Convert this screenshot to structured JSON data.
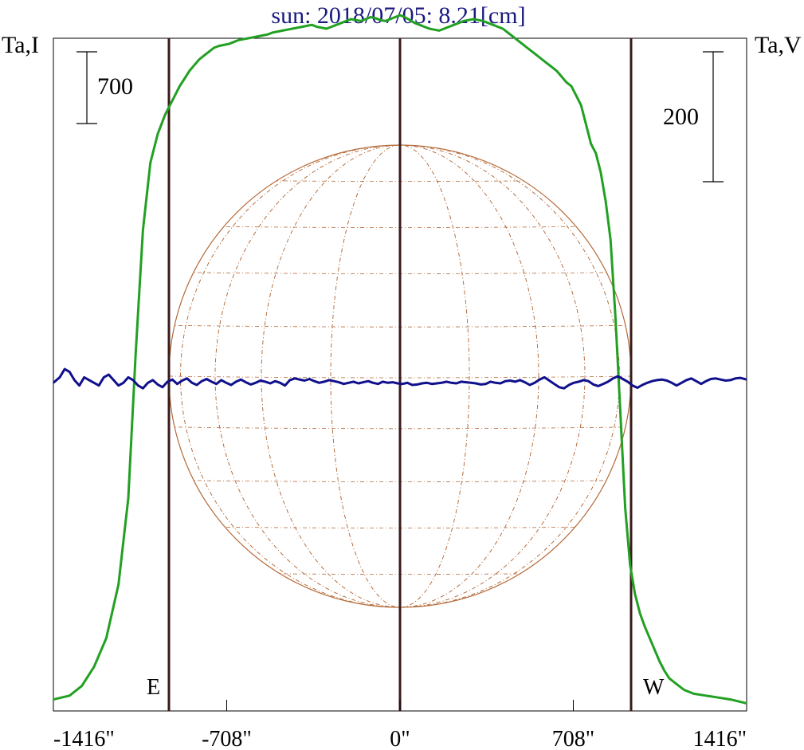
{
  "chart_data": {
    "type": "line",
    "title": "sun: 2018/07/05: 8.21[cm]",
    "ylabel_left": "Ta,I",
    "ylabel_right": "Ta,V",
    "xlim": [
      -1416,
      1416
    ],
    "x_ticks": [
      "-1416\"",
      "-708\"",
      "0\"",
      "708\"",
      "1416\""
    ],
    "x_tick_values": [
      -1416,
      -708,
      0,
      708,
      1416
    ],
    "scale_bar_left": "700",
    "scale_bar_right": "200",
    "limb_labels": {
      "east": "E",
      "west": "W"
    },
    "limb_positions": [
      -944,
      0,
      944
    ],
    "solar_radius_arcsec": 944,
    "series": [
      {
        "name": "I",
        "color": "#22a022",
        "ylim": [
          -60,
          3450
        ],
        "x": [
          -1416,
          -1350,
          -1300,
          -1250,
          -1200,
          -1150,
          -1110,
          -1080,
          -1050,
          -1020,
          -990,
          -960,
          -940,
          -920,
          -900,
          -880,
          -860,
          -840,
          -820,
          -800,
          -780,
          -760,
          -740,
          -720,
          -700,
          -680,
          -660,
          -640,
          -620,
          -600,
          -580,
          -560,
          -540,
          -520,
          -500,
          -480,
          -460,
          -440,
          -420,
          -400,
          -380,
          -360,
          -340,
          -320,
          -300,
          -280,
          -260,
          -240,
          -220,
          -200,
          -180,
          -160,
          -140,
          -120,
          -100,
          -80,
          -60,
          -40,
          -20,
          0,
          20,
          40,
          60,
          80,
          100,
          120,
          140,
          160,
          180,
          200,
          220,
          240,
          260,
          280,
          300,
          320,
          340,
          360,
          380,
          400,
          420,
          440,
          460,
          480,
          500,
          520,
          540,
          560,
          580,
          600,
          620,
          640,
          660,
          680,
          700,
          720,
          740,
          760,
          780,
          800,
          820,
          840,
          860,
          880,
          900,
          920,
          940,
          960,
          980,
          1000,
          1020,
          1040,
          1060,
          1080,
          1100,
          1130,
          1160,
          1200,
          1250,
          1300,
          1350,
          1416
        ],
        "y": [
          0,
          20,
          70,
          170,
          320,
          600,
          1050,
          1800,
          2450,
          2800,
          2950,
          3050,
          3100,
          3150,
          3200,
          3240,
          3280,
          3310,
          3340,
          3360,
          3380,
          3400,
          3410,
          3415,
          3420,
          3430,
          3440,
          3445,
          3450,
          3455,
          3460,
          3465,
          3470,
          3480,
          3485,
          3490,
          3495,
          3500,
          3505,
          3510,
          3515,
          3520,
          3510,
          3505,
          3500,
          3510,
          3520,
          3530,
          3540,
          3550,
          3545,
          3540,
          3550,
          3560,
          3555,
          3545,
          3540,
          3550,
          3560,
          3570,
          3560,
          3545,
          3530,
          3520,
          3510,
          3500,
          3495,
          3490,
          3500,
          3510,
          3520,
          3530,
          3540,
          3545,
          3550,
          3545,
          3540,
          3530,
          3520,
          3510,
          3500,
          3480,
          3460,
          3440,
          3420,
          3400,
          3380,
          3360,
          3340,
          3320,
          3300,
          3280,
          3250,
          3220,
          3200,
          3150,
          3100,
          3000,
          2900,
          2850,
          2750,
          2600,
          2400,
          2000,
          1500,
          1000,
          700,
          550,
          450,
          380,
          320,
          260,
          200,
          150,
          110,
          80,
          50,
          30,
          20,
          10,
          0,
          -20
        ]
      },
      {
        "name": "V",
        "color": "#10108c",
        "ylim": [
          -600,
          630
        ],
        "x": [
          -1416,
          -1390,
          -1370,
          -1350,
          -1330,
          -1310,
          -1290,
          -1270,
          -1250,
          -1230,
          -1210,
          -1190,
          -1170,
          -1150,
          -1130,
          -1110,
          -1090,
          -1070,
          -1050,
          -1030,
          -1010,
          -990,
          -970,
          -950,
          -930,
          -910,
          -890,
          -870,
          -850,
          -830,
          -810,
          -790,
          -770,
          -750,
          -730,
          -710,
          -690,
          -670,
          -650,
          -630,
          -610,
          -590,
          -570,
          -550,
          -530,
          -510,
          -490,
          -470,
          -450,
          -430,
          -410,
          -390,
          -370,
          -350,
          -330,
          -310,
          -290,
          -270,
          -250,
          -230,
          -210,
          -190,
          -170,
          -150,
          -130,
          -110,
          -90,
          -70,
          -50,
          -30,
          -10,
          10,
          30,
          50,
          70,
          90,
          110,
          130,
          150,
          170,
          190,
          210,
          230,
          250,
          270,
          290,
          310,
          330,
          350,
          370,
          390,
          410,
          430,
          450,
          470,
          490,
          510,
          530,
          550,
          570,
          590,
          610,
          630,
          650,
          670,
          690,
          710,
          730,
          750,
          770,
          790,
          810,
          830,
          850,
          870,
          890,
          910,
          930,
          950,
          970,
          990,
          1010,
          1030,
          1050,
          1070,
          1090,
          1110,
          1130,
          1150,
          1170,
          1190,
          1210,
          1230,
          1250,
          1270,
          1290,
          1310,
          1330,
          1350,
          1370,
          1390,
          1416
        ],
        "y": [
          0,
          10,
          25,
          20,
          5,
          -5,
          10,
          5,
          0,
          -5,
          10,
          15,
          5,
          -5,
          0,
          10,
          5,
          -5,
          -10,
          0,
          5,
          -3,
          -8,
          2,
          6,
          -2,
          4,
          8,
          0,
          -4,
          3,
          7,
          2,
          -2,
          5,
          0,
          -4,
          2,
          6,
          1,
          -3,
          0,
          4,
          2,
          -1,
          3,
          0,
          -5,
          5,
          8,
          6,
          4,
          7,
          3,
          0,
          2,
          5,
          3,
          1,
          -2,
          0,
          2,
          -1,
          1,
          3,
          0,
          -2,
          2,
          0,
          1,
          -1,
          -2,
          0,
          -4,
          -3,
          -1,
          0,
          -2,
          -1,
          0,
          2,
          0,
          -1,
          2,
          1,
          0,
          -1,
          -3,
          -2,
          2,
          0,
          -1,
          3,
          4,
          2,
          5,
          1,
          -4,
          0,
          6,
          10,
          4,
          -2,
          -8,
          -10,
          -4,
          0,
          2,
          5,
          3,
          -3,
          -6,
          -2,
          2,
          8,
          12,
          7,
          2,
          -5,
          -9,
          -4,
          0,
          3,
          5,
          6,
          4,
          0,
          -5,
          0,
          5,
          8,
          3,
          -2,
          3,
          7,
          8,
          6,
          4,
          5,
          8,
          9,
          6
        ]
      }
    ]
  }
}
